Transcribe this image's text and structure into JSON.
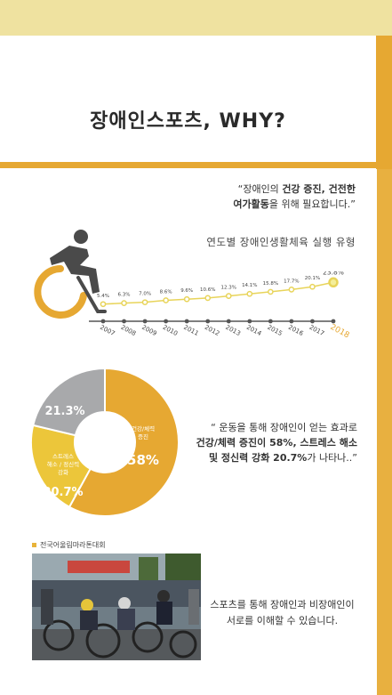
{
  "page": {
    "title": "장애인스포츠, WHY?",
    "quote1": {
      "line1_pre": "“장애인의 ",
      "line1_bold": "건강 증진, 건전한",
      "line2_bold": "여가활동",
      "line2_post": "을 위해 필요합니다.”"
    },
    "quote2": {
      "line1": "“ 운동을 통해 장애인이 얻는 효과로",
      "line2_bold": "건강/체력 증진이 58%, 스트레스 해소",
      "line3_bold": "및 정신력 강화 20.7%",
      "line3_post": "가 나타나..”"
    },
    "quote3": {
      "line1": "스포츠를 통해 장애인과 비장애인이",
      "line2": "서로를 이해할 수 있습니다."
    },
    "photo_caption": "전국어울림마라톤대회",
    "icons": [
      "wheelchair-athlete-icon",
      "caption-square-icon"
    ]
  },
  "colors": {
    "accent": "#e6a832",
    "accent_light": "#efe2a0",
    "line": "#e8d45a",
    "pie_yellow": "#ecc63a",
    "pie_gray": "#a8a9ab",
    "highlight_year": "#e6a832"
  },
  "chart_data": [
    {
      "type": "line",
      "title": "연도별 장애인생활체육 실행 유형",
      "x": [
        "2007",
        "2008",
        "2009",
        "2010",
        "2011",
        "2012",
        "2013",
        "2014",
        "2015",
        "2016",
        "2017",
        "2018"
      ],
      "series": [
        {
          "values": [
            5.4,
            6.3,
            7.0,
            8.6,
            9.6,
            10.6,
            12.3,
            14.1,
            15.8,
            17.7,
            20.1,
            23.8
          ],
          "labels": [
            "5.4%",
            "6.3%",
            "7.0%",
            "8.6%",
            "9.6%",
            "10.6%",
            "12.3%",
            "14.1%",
            "15.8%",
            "17.7%",
            "20.1%",
            "23.8%"
          ]
        }
      ],
      "ylim": [
        0,
        30
      ],
      "grid": false,
      "highlight": "2018"
    },
    {
      "type": "pie",
      "slices": [
        {
          "label": "건강/체력\n증진",
          "value": 58,
          "value_label": "58%"
        },
        {
          "label": "스트레스\n해소 / 정신력\n강화",
          "value": 20.7,
          "value_label": "20.7%"
        },
        {
          "label": "",
          "value": 21.3,
          "value_label": "21.3%"
        }
      ]
    }
  ]
}
